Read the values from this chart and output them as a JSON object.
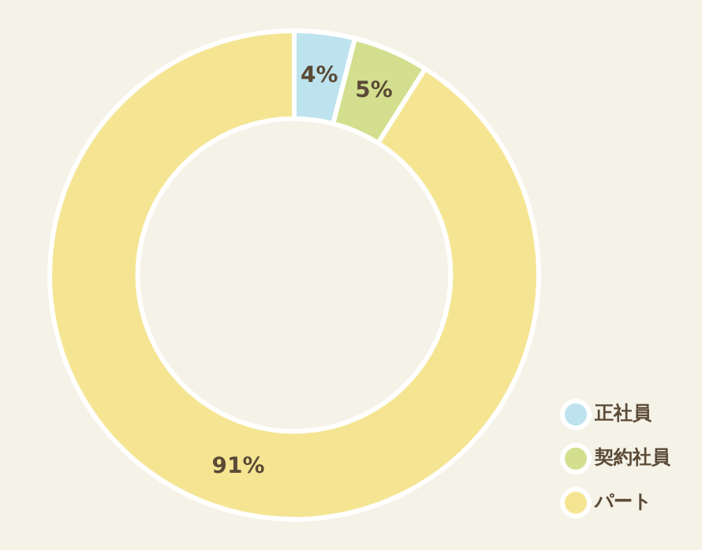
{
  "chart_data": {
    "type": "donut",
    "categories": [
      "正社員",
      "契約社員",
      "パート"
    ],
    "values": [
      4,
      5,
      91
    ],
    "colors": [
      "#bde3ee",
      "#d3df8e",
      "#f5e593"
    ],
    "value_labels": [
      "4%",
      "5%",
      "91%"
    ],
    "legend": "bottom right"
  }
}
